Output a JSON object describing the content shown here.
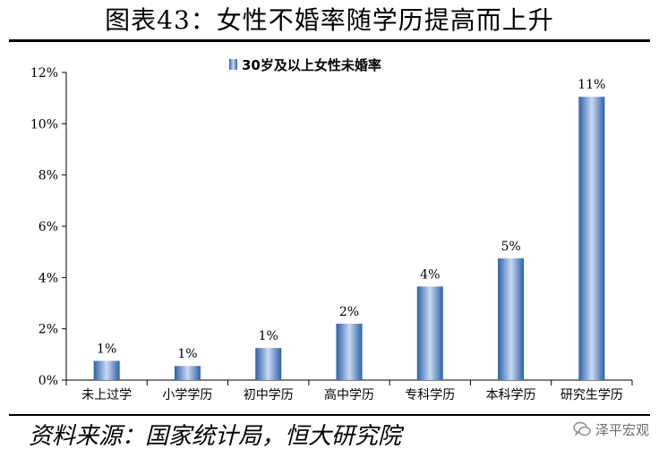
{
  "header": {
    "title": "图表43：女性不婚率随学历提高而上升"
  },
  "footer": {
    "source": "资料来源：国家统计局，恒大研究院",
    "watermark": "泽平宏观"
  },
  "colors": {
    "bar_dark": "#2f5fa8",
    "bar_light": "#c9daf2",
    "rule": "#000000"
  },
  "chart_data": {
    "type": "bar",
    "title": "",
    "xlabel": "",
    "ylabel": "",
    "ylim": [
      0,
      12
    ],
    "yticks": [
      0,
      2,
      4,
      6,
      8,
      10,
      12
    ],
    "ytick_labels": [
      "0%",
      "2%",
      "4%",
      "6%",
      "8%",
      "10%",
      "12%"
    ],
    "categories": [
      "未上过学",
      "小学学历",
      "初中学历",
      "高中学历",
      "专科学历",
      "本科学历",
      "研究生学历"
    ],
    "series": [
      {
        "name": "30岁及以上女性未婚率",
        "values": [
          0.75,
          0.55,
          1.25,
          2.2,
          3.65,
          4.75,
          11.05
        ],
        "labels": [
          "1%",
          "1%",
          "1%",
          "2%",
          "4%",
          "5%",
          "11%"
        ]
      }
    ],
    "legend": "top-center",
    "grid": false
  }
}
